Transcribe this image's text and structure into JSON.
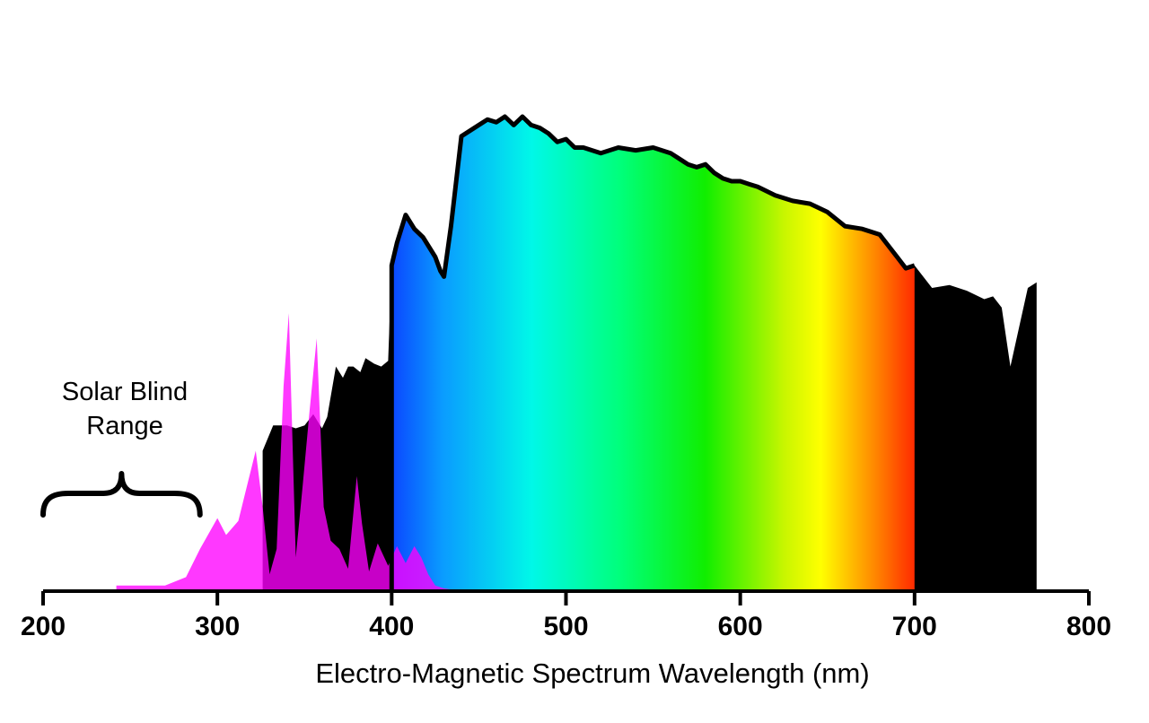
{
  "chart_data": {
    "type": "area",
    "xlabel": "Electro-Magnetic Spectrum Wavelength (nm)",
    "ylabel": "",
    "xlim": [
      200,
      800
    ],
    "xticks": [
      200,
      300,
      400,
      500,
      600,
      700,
      800
    ],
    "grid": false,
    "annotation": {
      "lines": [
        "Solar Blind",
        "Range"
      ],
      "range": [
        200,
        290
      ]
    },
    "visible_spectrum_range": [
      400,
      700
    ],
    "series": [
      {
        "color": "#000000",
        "x": [
          326,
          332,
          340,
          345,
          350,
          355,
          360,
          363,
          368,
          372,
          375,
          378,
          382,
          385,
          390,
          394,
          398,
          400,
          403,
          408,
          413,
          418,
          425,
          428,
          430,
          434,
          440,
          450,
          455,
          460,
          465,
          470,
          475,
          480,
          485,
          490,
          495,
          500,
          505,
          510,
          520,
          530,
          540,
          550,
          560,
          570,
          575,
          580,
          585,
          590,
          595,
          600,
          605,
          610,
          620,
          630,
          640,
          650,
          660,
          670,
          680,
          690,
          695,
          700,
          705,
          710,
          720,
          730,
          740,
          745,
          750,
          755,
          760,
          765,
          770
        ],
        "y": [
          50,
          59,
          59,
          58,
          59,
          63,
          58,
          62,
          80,
          76,
          80,
          80,
          78,
          83,
          81,
          80,
          82,
          116,
          124,
          134,
          129,
          126,
          119,
          114,
          112,
          130,
          162,
          166,
          168,
          167,
          169,
          166,
          169,
          166,
          165,
          163,
          160,
          161,
          158,
          158,
          156,
          158,
          157,
          158,
          156,
          152,
          151,
          152,
          149,
          147,
          146,
          146,
          145,
          144,
          141,
          139,
          138,
          135,
          130,
          129,
          127,
          119,
          115,
          116,
          112,
          108,
          109,
          107,
          104,
          105,
          101,
          80,
          94,
          108,
          110
        ]
      },
      {
        "color": "#ff00ff",
        "x": [
          242,
          270,
          282,
          290,
          300,
          305,
          312,
          318,
          322,
          326,
          330,
          334,
          338,
          341,
          345,
          349,
          353,
          357,
          361,
          365,
          370,
          375,
          380,
          383,
          387,
          392,
          398,
          403,
          408,
          413,
          417,
          421,
          425,
          430,
          440
        ],
        "y": [
          2,
          2,
          5,
          15,
          26,
          20,
          25,
          40,
          50,
          30,
          6,
          15,
          73,
          99,
          12,
          38,
          65,
          90,
          30,
          18,
          15,
          8,
          41,
          24,
          7,
          17,
          9,
          16,
          10,
          16,
          12,
          6,
          2,
          1,
          0
        ]
      }
    ]
  }
}
